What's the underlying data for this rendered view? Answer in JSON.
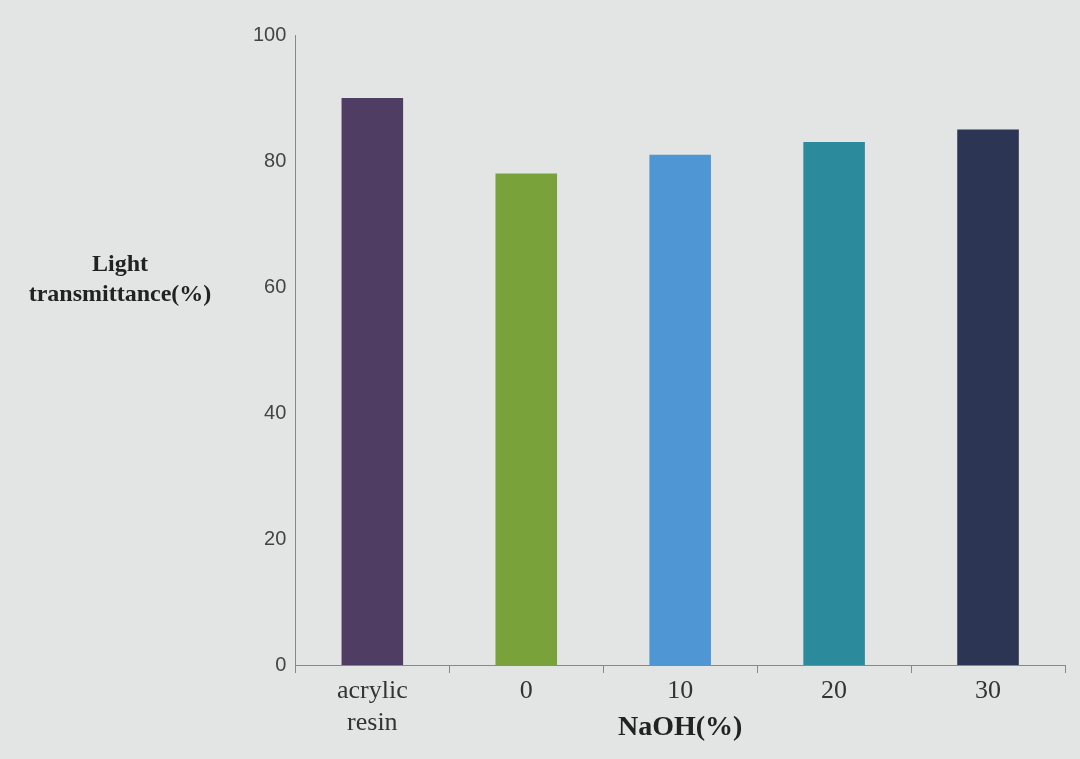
{
  "chart_data": {
    "type": "bar",
    "xlabel": "NaOH(%)",
    "ylabel": "Light transmittance(%)",
    "categories": [
      "acrylic resin",
      "0",
      "10",
      "20",
      "30"
    ],
    "values": [
      90,
      78,
      81,
      83,
      85
    ],
    "colors": [
      "#4f3d63",
      "#7aa23a",
      "#4f97d4",
      "#2b8a9b",
      "#2c3553"
    ],
    "ylim": [
      0,
      100
    ],
    "yticks": [
      0,
      20,
      40,
      60,
      80,
      100
    ],
    "grid": false,
    "legend": false
  }
}
